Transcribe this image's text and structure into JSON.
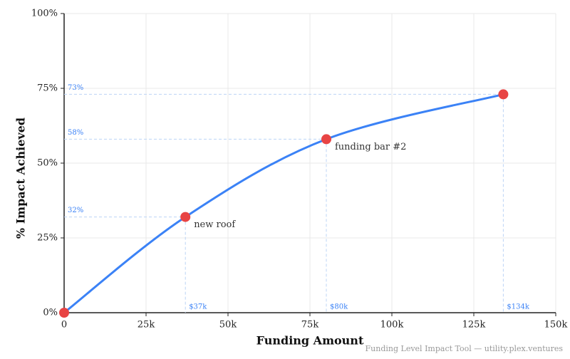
{
  "chart_data": {
    "type": "line",
    "x_label": "Funding Amount",
    "y_label": "% Impact Achieved",
    "footer": "Funding Level Impact Tool — utility.plex.ventures",
    "x": [
      0,
      37000,
      80000,
      134000
    ],
    "series": [
      {
        "color": "#3b82f6",
        "point_color": "#e84444",
        "values": [
          0,
          32,
          58,
          73
        ],
        "value_labels": [
          null,
          "32%",
          "58%",
          "73%"
        ],
        "x_value_labels": [
          null,
          "$37k",
          "$80k",
          "$134k"
        ],
        "point_labels": [
          null,
          "new roof",
          "funding bar #2",
          null
        ]
      }
    ],
    "xlim": [
      0,
      150000
    ],
    "xticks": [
      0,
      {
        "value": 25000,
        "label": "25k"
      },
      {
        "value": 50000,
        "label": "50k"
      },
      {
        "value": 75000,
        "label": "75k"
      },
      {
        "value": 100000,
        "label": "100k"
      },
      {
        "value": 125000,
        "label": "125k"
      },
      {
        "value": 150000,
        "label": "150k"
      }
    ],
    "ylim": [
      0,
      100
    ],
    "yticks": [
      {
        "value": 0,
        "label": "0%"
      },
      {
        "value": 25,
        "label": "25%"
      },
      {
        "value": 50,
        "label": "50%"
      },
      {
        "value": 75,
        "label": "75%"
      },
      {
        "value": 100,
        "label": "100%"
      }
    ],
    "grid": true
  }
}
